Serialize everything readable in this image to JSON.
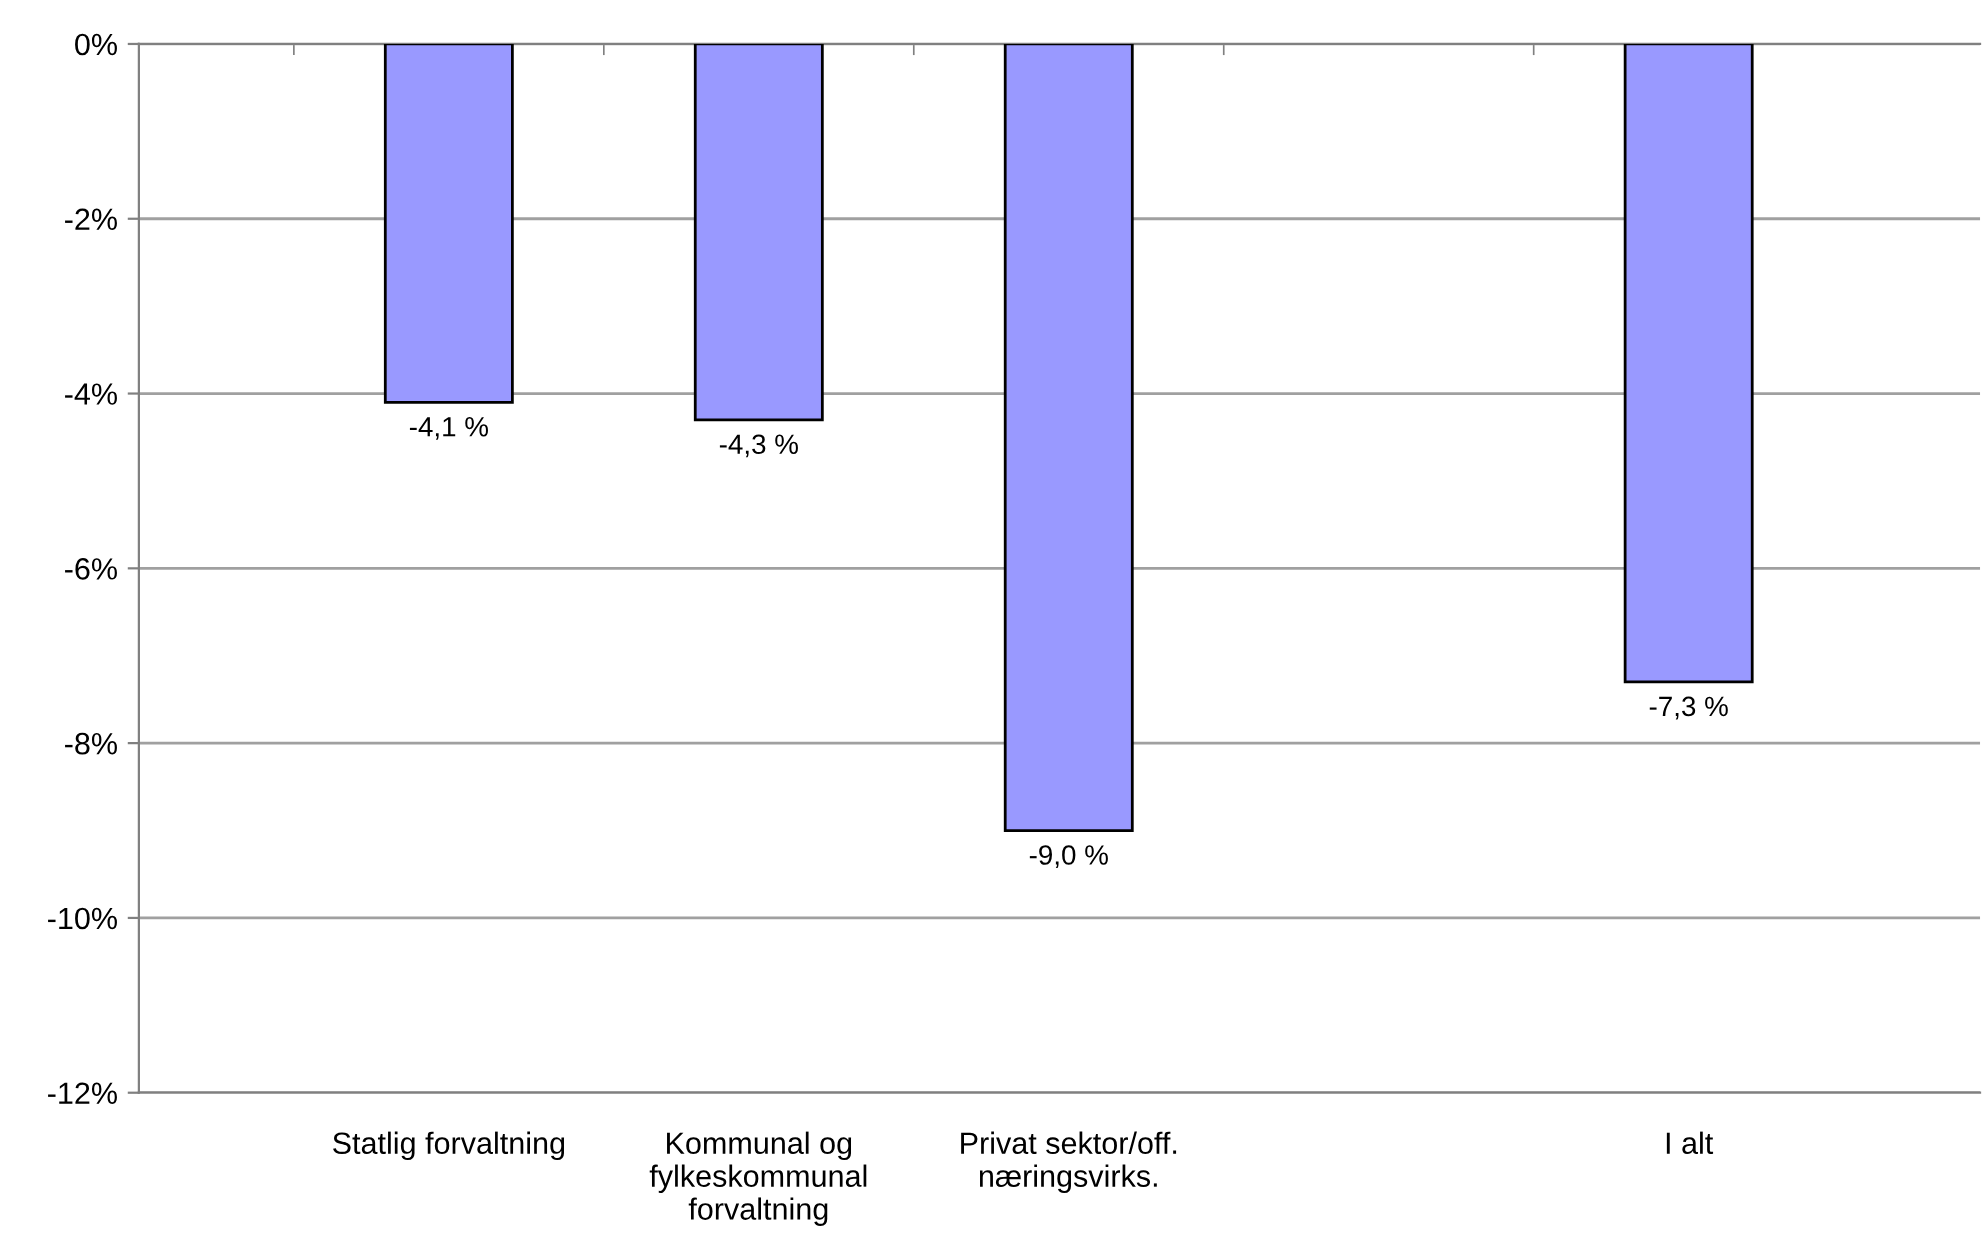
{
  "chart_data": {
    "type": "bar",
    "categories": [
      "Statlig forvaltning",
      "Kommunal og\nfylkeskommunal\nforvaltning",
      "Privat sektor/off.\nnæringsvirks.",
      null,
      "I alt"
    ],
    "values": [
      -4.1,
      -4.3,
      -9.0,
      null,
      -7.3
    ],
    "value_labels": [
      "-4,1 %",
      "-4,3 %",
      "-9,0 %",
      null,
      "-7,3 %"
    ],
    "color": "#9999ff",
    "ylim": [
      -12,
      0
    ],
    "yticks": [
      {
        "value": 0,
        "label": "0%"
      },
      {
        "value": -2,
        "label": "-2%"
      },
      {
        "value": -4,
        "label": "-4%"
      },
      {
        "value": -6,
        "label": "-6%"
      },
      {
        "value": -8,
        "label": "-8%"
      },
      {
        "value": -10,
        "label": "-10%"
      },
      {
        "value": -12,
        "label": "-12%"
      }
    ],
    "grid": "y",
    "legend": false
  }
}
